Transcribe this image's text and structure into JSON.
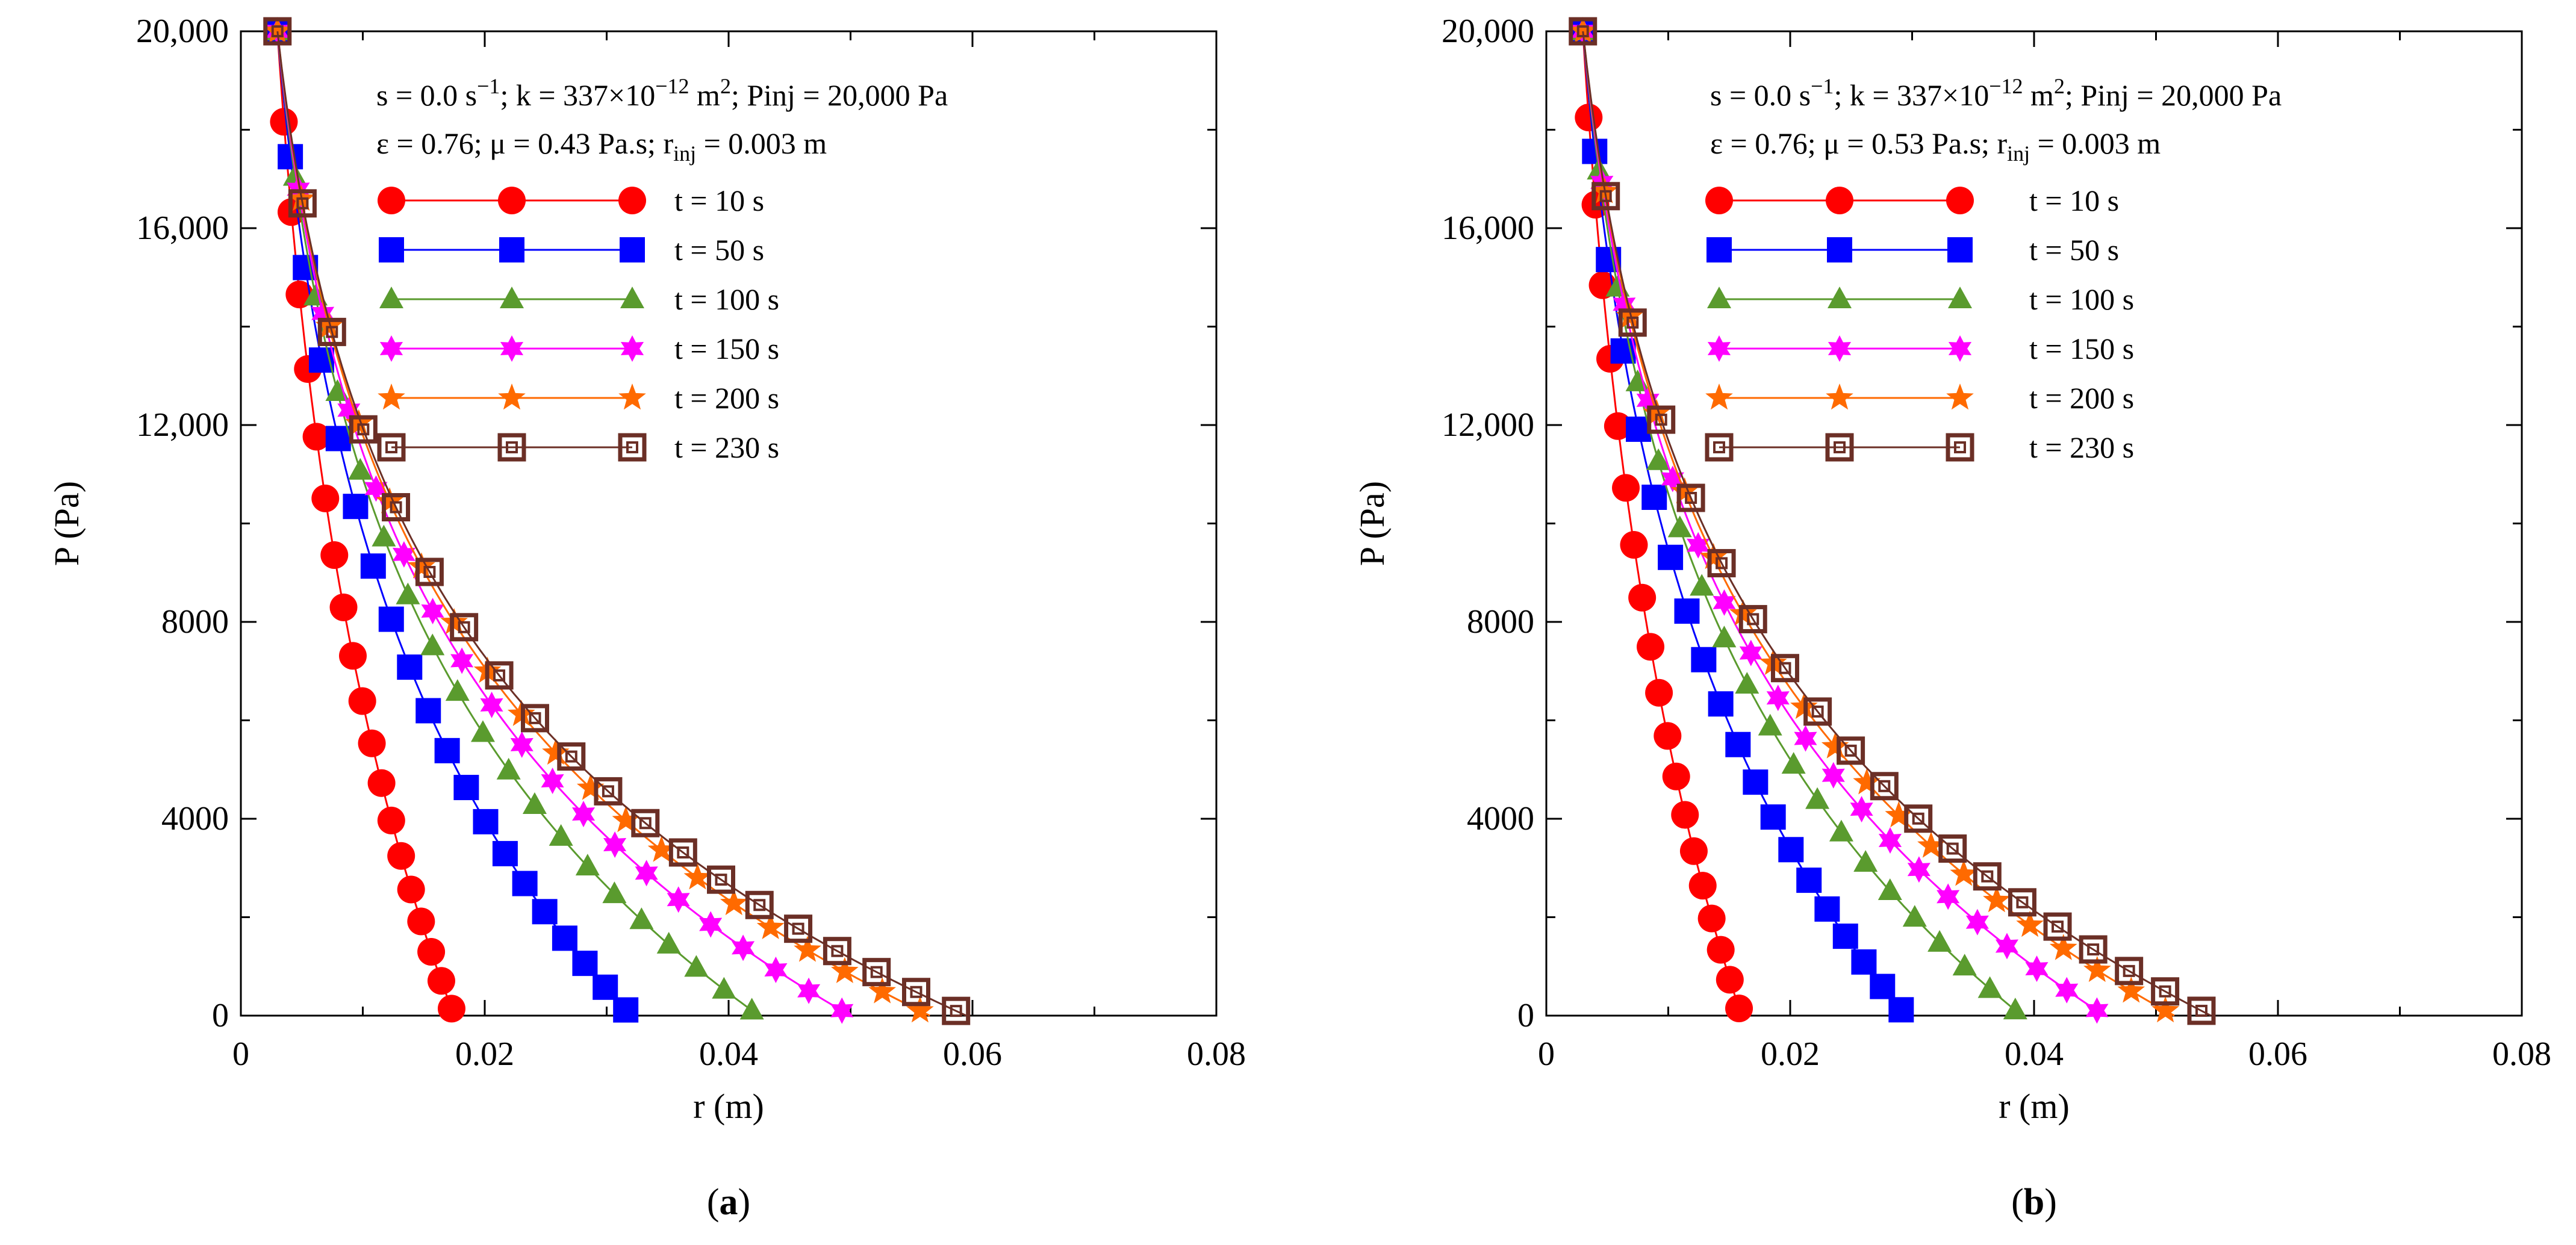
{
  "chart_data": [
    {
      "type": "line",
      "panel": "a",
      "xlabel": "r (m)",
      "ylabel": "P (Pa)",
      "xlim": [
        0,
        0.08
      ],
      "ylim": [
        0,
        20000
      ],
      "xticks": [
        0,
        0.02,
        0.04,
        0.06,
        0.08
      ],
      "xtick_labels": [
        "0",
        "0.02",
        "0.04",
        "0.06",
        "0.08"
      ],
      "yticks": [
        0,
        4000,
        8000,
        12000,
        16000,
        20000
      ],
      "ytick_labels": [
        "0",
        "4000",
        "8000",
        "12,000",
        "16,000",
        "20,000"
      ],
      "annotation": {
        "line1_part1": "s = 0.0 s",
        "line1_sup1": "−1",
        "line1_part2": "; k = 337×10",
        "line1_sup2": "−12",
        "line1_part3": " m",
        "line1_sup3": "2",
        "line1_part4": "; Pinj = 20,000 Pa",
        "line2_part1": "ε = 0.76; μ = 0.43 Pa.s; r",
        "line2_sub": "inj",
        "line2_part2": " = 0.003 m"
      },
      "panel_label_open": "(",
      "panel_label_letter": "a",
      "panel_label_close": ")",
      "series": [
        {
          "name": "t = 10 s",
          "color": "#ff0000",
          "marker": "circle",
          "r_max": 0.0175
        },
        {
          "name": "t = 50 s",
          "color": "#0000ff",
          "marker": "square",
          "r_max": 0.032
        },
        {
          "name": "t = 100 s",
          "color": "#5a9b2e",
          "marker": "triangle",
          "r_max": 0.0425
        },
        {
          "name": "t = 150 s",
          "color": "#ff00ff",
          "marker": "hexstar",
          "r_max": 0.05
        },
        {
          "name": "t = 200 s",
          "color": "#ff6a00",
          "marker": "star",
          "r_max": 0.0565
        },
        {
          "name": "t = 230 s",
          "color": "#6b2f26",
          "marker": "opensquare",
          "r_max": 0.0595
        }
      ]
    },
    {
      "type": "line",
      "panel": "b",
      "xlabel": "r (m)",
      "ylabel": "P (Pa)",
      "xlim": [
        0,
        0.08
      ],
      "ylim": [
        0,
        20000
      ],
      "xticks": [
        0,
        0.02,
        0.04,
        0.06,
        0.08
      ],
      "xtick_labels": [
        "0",
        "0.02",
        "0.04",
        "0.06",
        "0.08"
      ],
      "yticks": [
        0,
        4000,
        8000,
        12000,
        16000,
        20000
      ],
      "ytick_labels": [
        "0",
        "4000",
        "8000",
        "12,000",
        "16,000",
        "20,000"
      ],
      "annotation": {
        "line1_part1": "s = 0.0 s",
        "line1_sup1": "−1",
        "line1_part2": "; k = 337×10",
        "line1_sup2": "−12",
        "line1_part3": " m",
        "line1_sup3": "2",
        "line1_part4": "; Pinj = 20,000 Pa",
        "line2_part1": "ε = 0.76; μ = 0.53 Pa.s; r",
        "line2_sub": "inj",
        "line2_part2": " = 0.003 m"
      },
      "panel_label_open": "(",
      "panel_label_letter": "b",
      "panel_label_close": ")",
      "series": [
        {
          "name": "t = 10 s",
          "color": "#ff0000",
          "marker": "circle",
          "r_max": 0.016
        },
        {
          "name": "t = 50 s",
          "color": "#0000ff",
          "marker": "square",
          "r_max": 0.0295
        },
        {
          "name": "t = 100 s",
          "color": "#5a9b2e",
          "marker": "triangle",
          "r_max": 0.039
        },
        {
          "name": "t = 150 s",
          "color": "#ff00ff",
          "marker": "hexstar",
          "r_max": 0.0458
        },
        {
          "name": "t = 200 s",
          "color": "#ff6a00",
          "marker": "star",
          "r_max": 0.0515
        },
        {
          "name": "t = 230 s",
          "color": "#6b2f26",
          "marker": "opensquare",
          "r_max": 0.0545
        }
      ]
    }
  ],
  "shared": {
    "r_inj": 0.003,
    "p_inj": 20000,
    "points_per_series": 20
  }
}
